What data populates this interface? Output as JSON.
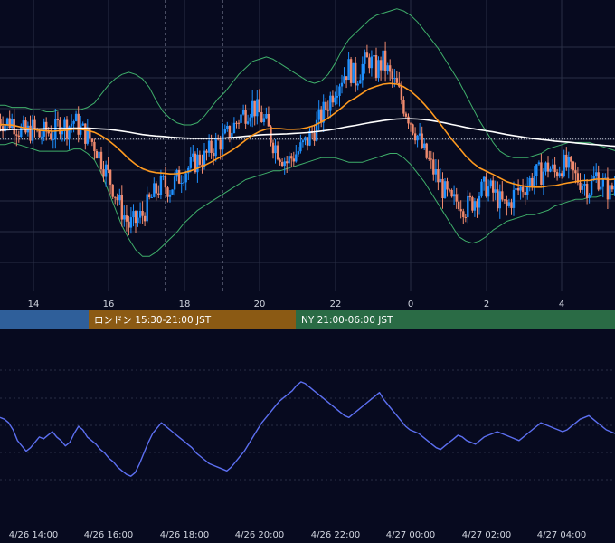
{
  "chart_data": [
    {
      "type": "candlestick",
      "x_tick_labels": [
        "14",
        "16",
        "18",
        "20",
        "22",
        "0",
        "2",
        "4"
      ],
      "grid": true,
      "colors": {
        "up": "#1e90ff",
        "down": "#f08a6e",
        "sma_fast": "#ff9a1f",
        "sma_slow": "#ffffff",
        "bollinger": "#3fae6a",
        "grid": "#2a2f45"
      },
      "close_series": [
        141.4,
        141.2,
        141.3,
        140.9,
        140.7,
        140.9,
        140.6,
        140.8,
        140.7,
        141.2,
        141.0,
        141.3,
        140.9,
        140.6,
        140.2,
        139.5,
        138.8,
        138.0,
        137.2,
        136.5,
        136.7,
        137.0,
        137.6,
        138.1,
        138.4,
        138.2,
        138.6,
        139.0,
        139.2,
        139.5,
        139.6,
        140.0,
        140.3,
        140.5,
        140.9,
        141.4,
        141.7,
        142.0,
        141.6,
        141.1,
        140.3,
        139.8,
        139.4,
        139.7,
        140.0,
        140.4,
        140.9,
        141.5,
        142.1,
        142.8,
        143.3,
        143.7,
        143.2,
        143.8,
        144.1,
        143.6,
        144.0,
        143.3,
        142.8,
        142.0,
        141.3,
        140.6,
        139.8,
        139.2,
        138.6,
        138.0,
        137.5,
        137.7,
        137.3,
        137.6,
        138.0,
        138.3,
        138.0,
        137.6,
        137.3,
        137.9,
        138.2,
        138.4,
        138.8,
        138.9,
        139.2,
        138.9,
        139.3,
        139.1,
        138.7,
        138.5,
        138.2,
        138.8,
        138.4,
        138.0,
        138.6
      ],
      "series": [
        {
          "name": "",
          "values": [
            141.12,
            141.11,
            141.09,
            141.02,
            140.95,
            140.91,
            140.85,
            140.83,
            140.81,
            140.84,
            140.86,
            140.91,
            140.9,
            140.85,
            140.76,
            140.61,
            140.4,
            140.15,
            139.86,
            139.55,
            139.3,
            139.1,
            138.98,
            138.92,
            138.9,
            138.86,
            138.87,
            138.92,
            139.0,
            139.12,
            139.25,
            139.41,
            139.58,
            139.75,
            139.94,
            140.16,
            140.4,
            140.63,
            140.8,
            140.91,
            140.94,
            140.93,
            140.9,
            140.9,
            140.92,
            140.98,
            141.08,
            141.23,
            141.41,
            141.64,
            141.89,
            142.16,
            142.34,
            142.55,
            142.75,
            142.86,
            142.96,
            142.99,
            142.96,
            142.84,
            142.64,
            142.37,
            142.04,
            141.68,
            141.28,
            140.86,
            140.44,
            140.07,
            139.69,
            139.38,
            139.14,
            138.99,
            138.84,
            138.67,
            138.51,
            138.41,
            138.34,
            138.28,
            138.26,
            138.26,
            138.31,
            138.33,
            138.4,
            138.46,
            138.51,
            138.56,
            138.57,
            138.62,
            138.63,
            138.6,
            138.63
          ]
        },
        {
          "name": "",
          "values": [
            140.85,
            140.87,
            140.89,
            140.9,
            140.9,
            140.91,
            140.92,
            140.93,
            140.93,
            140.94,
            140.94,
            140.95,
            140.95,
            140.95,
            140.94,
            140.92,
            140.9,
            140.86,
            140.82,
            140.77,
            140.71,
            140.66,
            140.62,
            140.59,
            140.57,
            140.54,
            140.52,
            140.5,
            140.49,
            140.48,
            140.48,
            140.48,
            140.49,
            140.5,
            140.52,
            140.55,
            140.58,
            140.61,
            140.64,
            140.66,
            140.67,
            140.68,
            140.69,
            140.71,
            140.73,
            140.75,
            140.78,
            140.82,
            140.86,
            140.91,
            140.97,
            141.03,
            141.08,
            141.14,
            141.2,
            141.25,
            141.3,
            141.34,
            141.37,
            141.38,
            141.38,
            141.37,
            141.34,
            141.3,
            141.25,
            141.19,
            141.12,
            141.06,
            140.99,
            140.93,
            140.88,
            140.83,
            140.78,
            140.72,
            140.66,
            140.61,
            140.56,
            140.51,
            140.47,
            140.43,
            140.4,
            140.36,
            140.33,
            140.31,
            140.28,
            140.25,
            140.22,
            140.2,
            140.17,
            140.14,
            140.12
          ]
        }
      ],
      "bollinger_upper": [
        142.0,
        142.0,
        141.9,
        141.9,
        141.9,
        141.8,
        141.8,
        141.7,
        141.7,
        141.8,
        141.8,
        141.8,
        141.8,
        141.9,
        142.1,
        142.5,
        142.9,
        143.2,
        143.4,
        143.5,
        143.4,
        143.2,
        142.8,
        142.2,
        141.7,
        141.4,
        141.2,
        141.1,
        141.1,
        141.2,
        141.5,
        141.9,
        142.3,
        142.6,
        143.0,
        143.4,
        143.7,
        144.0,
        144.1,
        144.2,
        144.1,
        143.9,
        143.7,
        143.5,
        143.3,
        143.1,
        143.0,
        143.1,
        143.4,
        143.9,
        144.5,
        145.0,
        145.3,
        145.6,
        145.9,
        146.1,
        146.2,
        146.3,
        146.4,
        146.3,
        146.1,
        145.8,
        145.4,
        145.0,
        144.6,
        144.1,
        143.6,
        143.1,
        142.5,
        141.9,
        141.3,
        140.8,
        140.3,
        139.9,
        139.7,
        139.6,
        139.6,
        139.6,
        139.7,
        139.8,
        140.0,
        140.1,
        140.2,
        140.3,
        140.3,
        140.3,
        140.3,
        140.2,
        140.1,
        140.0,
        139.9
      ],
      "bollinger_lower": [
        140.2,
        140.2,
        140.3,
        140.2,
        140.1,
        140.0,
        139.9,
        139.9,
        139.9,
        139.9,
        139.9,
        140.0,
        140.0,
        139.8,
        139.5,
        138.9,
        138.1,
        137.3,
        136.5,
        135.9,
        135.4,
        135.1,
        135.1,
        135.3,
        135.6,
        135.9,
        136.2,
        136.6,
        136.9,
        137.2,
        137.4,
        137.6,
        137.8,
        138.0,
        138.2,
        138.4,
        138.6,
        138.7,
        138.8,
        138.9,
        139.0,
        139.0,
        139.1,
        139.2,
        139.3,
        139.4,
        139.5,
        139.6,
        139.6,
        139.6,
        139.5,
        139.4,
        139.4,
        139.4,
        139.5,
        139.6,
        139.7,
        139.8,
        139.8,
        139.6,
        139.3,
        138.9,
        138.5,
        138.0,
        137.5,
        137.0,
        136.5,
        136.0,
        135.8,
        135.7,
        135.8,
        136.0,
        136.3,
        136.5,
        136.7,
        136.8,
        136.9,
        137.0,
        137.0,
        137.1,
        137.2,
        137.4,
        137.5,
        137.6,
        137.7,
        137.7,
        137.8,
        137.8,
        137.9,
        137.9,
        138.0
      ],
      "price_scale": [
        133.5,
        146.8
      ],
      "reference_line": 140.45
    },
    {
      "type": "session_band",
      "sessions": [
        {
          "label": "",
          "color": "#2f5f9a"
        },
        {
          "label": "ロンドン 15:30-21:00 JST",
          "color": "#8b5a14"
        },
        {
          "label": "NY 21:00-06:00 JST",
          "color": "#2a6b45"
        }
      ]
    },
    {
      "type": "line",
      "series": [
        {
          "name": "",
          "values": [
            58,
            57,
            55,
            51,
            45,
            42,
            39,
            41,
            44,
            47,
            46,
            48,
            50,
            47,
            45,
            42,
            44,
            49,
            53,
            51,
            47,
            45,
            43,
            40,
            38,
            35,
            33,
            30,
            28,
            26,
            25,
            27,
            32,
            38,
            44,
            49,
            52,
            55,
            53,
            51,
            49,
            47,
            45,
            43,
            41,
            38,
            36,
            34,
            32,
            31,
            30,
            29,
            28,
            30,
            33,
            36,
            39,
            43,
            47,
            51,
            55,
            58,
            61,
            64,
            67,
            69,
            71,
            73,
            76,
            78,
            77,
            75,
            73,
            71,
            69,
            67,
            65,
            63,
            61,
            59,
            58,
            60,
            62,
            64,
            66,
            68,
            70,
            72,
            68,
            65,
            62,
            59,
            56,
            53,
            51,
            50,
            49,
            47,
            45,
            43,
            41,
            40,
            42,
            44,
            46,
            48,
            47,
            45,
            44,
            43,
            45,
            47,
            48,
            49,
            50,
            49,
            48,
            47,
            46,
            45,
            47,
            49,
            51,
            53,
            55,
            54,
            53,
            52,
            51,
            50,
            51,
            53,
            55,
            57,
            58,
            59,
            57,
            55,
            53,
            51,
            50,
            49
          ]
        }
      ],
      "x_tick_labels": [
        "4/26 14:00",
        "4/26 16:00",
        "4/26 18:00",
        "4/26 20:00",
        "4/26 22:00",
        "4/27 00:00",
        "4/27 02:00",
        "4/27 04:00"
      ],
      "color": "#5c6ff0",
      "grid": true
    }
  ]
}
